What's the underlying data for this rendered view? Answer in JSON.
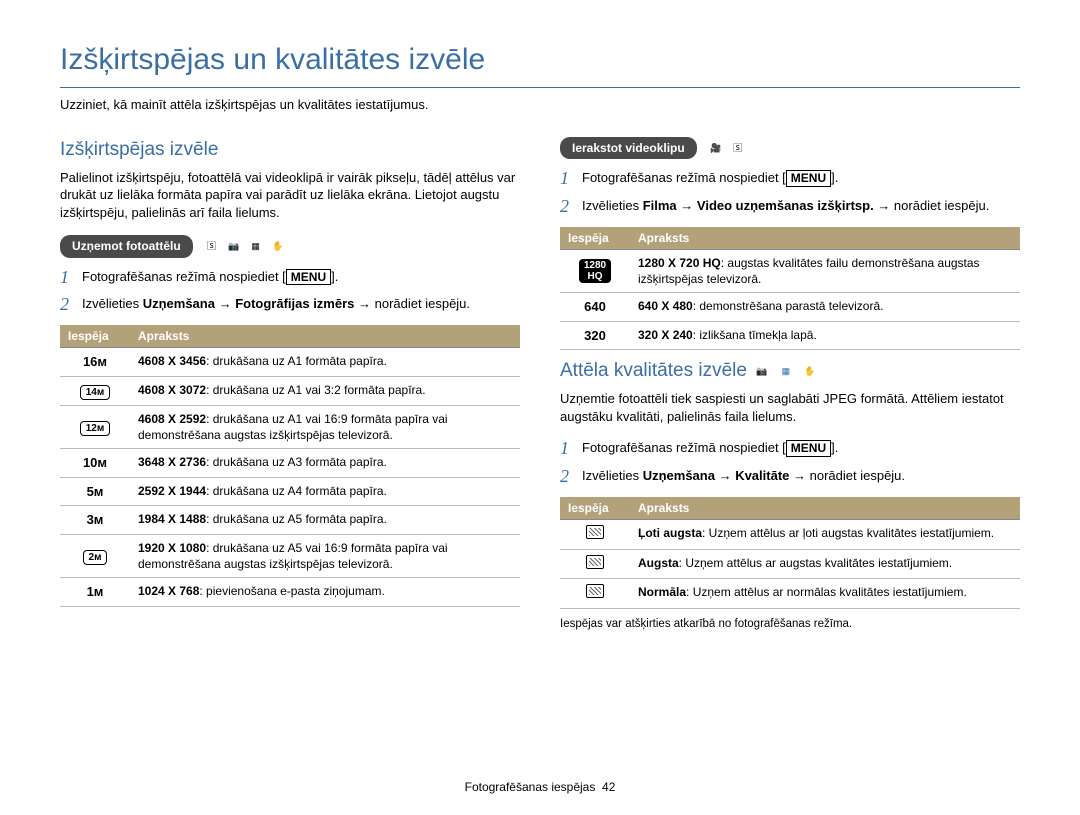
{
  "palette": {
    "heading_color": "#3a6ea5",
    "pill_bg": "#4a4a4a",
    "pill_text": "#ffffff",
    "table_header_bg": "#b3a17a",
    "table_header_text": "#ffffff",
    "body_text": "#000000",
    "bg": "#ffffff",
    "row_border": "#bbbbbb"
  },
  "typography": {
    "base_family": "Arial",
    "base_size_pt": 10,
    "title_size_pt": 22,
    "section_size_pt": 14
  },
  "page": {
    "title": "Izšķirtspējas un kvalitātes izvēle",
    "intro": "Uzziniet, kā mainīt attēla izšķirtspējas un kvalitātes iestatījumus."
  },
  "footer": {
    "label": "Fotografēšanas iespējas",
    "page": "42"
  },
  "menu_word": "MENU",
  "table_headers": {
    "option": "Iespēja",
    "desc": "Apraksts"
  },
  "left": {
    "section_title": "Izšķirtspējas izvēle",
    "section_intro": "Palielinot izšķirtspēju, fotoattēlā vai videoklipā ir vairāk pikseļu, tādēļ attēlus var drukāt uz lielāka formāta papīra vai parādīt uz lielāka ekrāna. Lietojot augstu izšķirtspēju, palielinās arī faila lielums.",
    "pill": "Uzņemot fotoattēlu",
    "mode_icons": [
      "SMART",
      "Op",
      "SCENE",
      "DUAL"
    ],
    "steps": [
      {
        "num": "1",
        "pre": "Fotografēšanas režīmā nospiediet [",
        "post": "]."
      },
      {
        "num": "2",
        "pre": "Izvēlieties ",
        "b1": "Uzņemšana",
        "arrow1": " → ",
        "b2": "Fotogrāfijas izmērs",
        "arrow2": " → ",
        "post": "norādiet iespēju."
      }
    ],
    "rows": [
      {
        "icon_text": "16ᴍ",
        "badge_style": "plain",
        "b": "4608 X 3456",
        "d": ": drukāšana uz A1 formāta papīra."
      },
      {
        "icon_text": "14ᴍ",
        "badge_style": "outline",
        "b": "4608 X 3072",
        "d": ": drukāšana uz A1 vai 3:2 formāta papīra."
      },
      {
        "icon_text": "12ᴍ",
        "badge_style": "outline",
        "b": "4608 X 2592",
        "d": ": drukāšana uz A1 vai 16:9 formāta papīra vai demonstrēšana augstas izšķirtspējas televizorā."
      },
      {
        "icon_text": "10ᴍ",
        "badge_style": "plain",
        "b": "3648 X 2736",
        "d": ": drukāšana uz A3 formāta papīra."
      },
      {
        "icon_text": "5ᴍ",
        "badge_style": "plain",
        "b": "2592 X 1944",
        "d": ": drukāšana uz A4 formāta papīra."
      },
      {
        "icon_text": "3ᴍ",
        "badge_style": "plain",
        "b": "1984 X 1488",
        "d": ": drukāšana uz A5 formāta papīra."
      },
      {
        "icon_text": "2ᴍ",
        "badge_style": "outline",
        "b": "1920 X 1080",
        "d": ": drukāšana uz A5 vai 16:9 formāta papīra vai demonstrēšana augstas izšķirtspējas televizorā."
      },
      {
        "icon_text": "1ᴍ",
        "badge_style": "plain",
        "b": "1024 X 768",
        "d": ": pievienošana e-pasta ziņojumam."
      }
    ]
  },
  "right": {
    "video": {
      "pill": "Ierakstot videoklipu",
      "mode_icons": [
        "🎥",
        "SMART"
      ],
      "steps": [
        {
          "num": "1",
          "pre": "Fotografēšanas režīmā nospiediet [",
          "post": "]."
        },
        {
          "num": "2",
          "pre": "Izvēlieties ",
          "b1": "Filma",
          "arrow1": " → ",
          "b2": "Video uzņemšanas izšķirtsp.",
          "arrow2": " → ",
          "post": "norādiet iespēju."
        }
      ],
      "rows": [
        {
          "icon_text": "1280\nHQ",
          "badge_style": "solid",
          "b": "1280 X 720 HQ",
          "d": ": augstas kvalitātes failu demonstrēšana augstas izšķirtspējas televizorā."
        },
        {
          "icon_text": "640",
          "badge_style": "plain",
          "b": "640 X 480",
          "d": ": demonstrēšana parastā televizorā."
        },
        {
          "icon_text": "320",
          "badge_style": "plain",
          "b": "320 X 240",
          "d": ": izlikšana tīmekļa lapā."
        }
      ]
    },
    "quality": {
      "section_title": "Attēla kvalitātes izvēle",
      "mode_icons": [
        "Op",
        "SCENE",
        "DUAL"
      ],
      "section_intro": "Uzņemtie fotoattēli tiek saspiesti un saglabāti JPEG formātā. Attēliem iestatot augstāku kvalitāti, palielinās faila lielums.",
      "steps": [
        {
          "num": "1",
          "pre": "Fotografēšanas režīmā nospiediet [",
          "post": "]."
        },
        {
          "num": "2",
          "pre": "Izvēlieties ",
          "b1": "Uzņemšana",
          "arrow1": " → ",
          "b2": "Kvalitāte",
          "arrow2": " → ",
          "post": "norādiet iespēju."
        }
      ],
      "rows": [
        {
          "b": "Ļoti augsta",
          "d": ": Uzņem attēlus ar ļoti augstas kvalitātes iestatījumiem."
        },
        {
          "b": "Augsta",
          "d": ": Uzņem attēlus ar augstas kvalitātes iestatījumiem."
        },
        {
          "b": "Normāla",
          "d": ": Uzņem attēlus ar normālas kvalitātes iestatījumiem."
        }
      ],
      "note": "Iespējas var atšķirties atkarībā no fotografēšanas režīma."
    }
  }
}
